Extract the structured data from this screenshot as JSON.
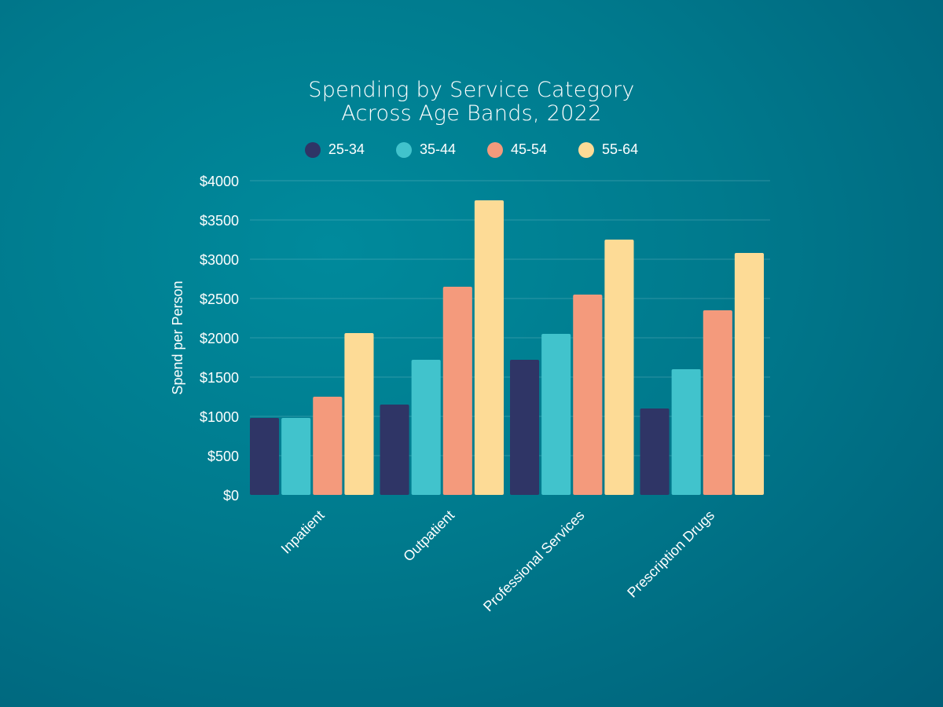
{
  "chart_data": {
    "type": "bar",
    "title_lines": [
      "Spending by Service Category",
      "Across Age Bands, 2022"
    ],
    "xlabel": "",
    "ylabel": "Spend per Person",
    "categories": [
      "Inpatient",
      "Outpatient",
      "Professional Services",
      "Prescription Drugs"
    ],
    "series": [
      {
        "name": "25-34",
        "color": "#2f3566",
        "values": [
          980,
          1150,
          1720,
          1100
        ]
      },
      {
        "name": "35-44",
        "color": "#41c3cc",
        "values": [
          980,
          1720,
          2050,
          1600
        ]
      },
      {
        "name": "45-54",
        "color": "#f49a7c",
        "values": [
          1250,
          2650,
          2550,
          2350
        ]
      },
      {
        "name": "55-64",
        "color": "#fddb96",
        "values": [
          2060,
          3750,
          3250,
          3080
        ]
      }
    ],
    "ylim": [
      0,
      4000
    ],
    "yticks": [
      0,
      500,
      1000,
      1500,
      2000,
      2500,
      3000,
      3500,
      4000
    ],
    "ytick_labels": [
      "$0",
      "$500",
      "$1000",
      "$1500",
      "$2000",
      "$2500",
      "$3000",
      "$3500",
      "$4000"
    ],
    "grid": true,
    "legend_position": "top-center"
  }
}
